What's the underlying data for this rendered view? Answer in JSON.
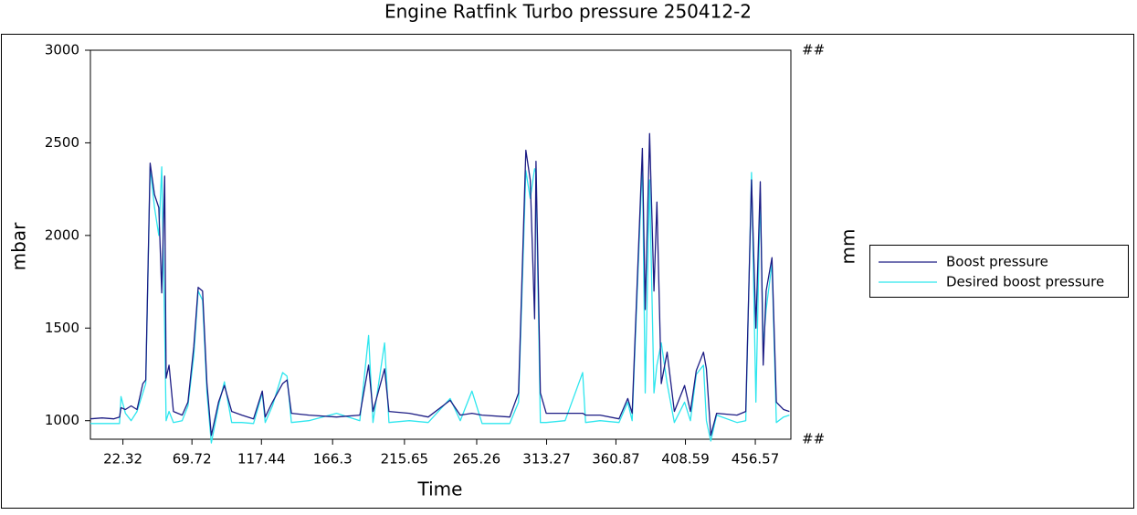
{
  "chart_data": {
    "type": "line",
    "title": "Engine Ratfink   Turbo pressure 250412-2",
    "xlabel": "Time",
    "ylabel": "mbar",
    "y2label": "mm",
    "y2_tick_labels": [
      "##",
      "##"
    ],
    "x": [
      0,
      8,
      16,
      20,
      21,
      24,
      28,
      32,
      36,
      38,
      41,
      44,
      47,
      49,
      51,
      52,
      54,
      57,
      63,
      67,
      71,
      74,
      77,
      80,
      83,
      88,
      92,
      97,
      104,
      112,
      118,
      120,
      125,
      132,
      135,
      138,
      150,
      169,
      185,
      191,
      194,
      202,
      205,
      219,
      232,
      247,
      254,
      262,
      269,
      288,
      294,
      299,
      302,
      305,
      306,
      309,
      313,
      326,
      338,
      340,
      350,
      363,
      369,
      372,
      379,
      381,
      384,
      387,
      389,
      392,
      396,
      401,
      408,
      412,
      416,
      421,
      423,
      426,
      430,
      444,
      450,
      454,
      457,
      460,
      462,
      464,
      468,
      471,
      476,
      480
    ],
    "series": [
      {
        "name": "Boost pressure",
        "color": "#1c1c84",
        "values": [
          1010,
          1015,
          1010,
          1020,
          1070,
          1060,
          1080,
          1060,
          1200,
          1220,
          2390,
          2220,
          2150,
          1690,
          2320,
          1230,
          1300,
          1050,
          1030,
          1100,
          1400,
          1720,
          1700,
          1200,
          920,
          1100,
          1190,
          1050,
          1030,
          1010,
          1160,
          1020,
          1100,
          1200,
          1220,
          1040,
          1030,
          1020,
          1030,
          1300,
          1050,
          1280,
          1050,
          1040,
          1020,
          1110,
          1030,
          1040,
          1030,
          1020,
          1150,
          2460,
          2300,
          1550,
          2400,
          1150,
          1040,
          1040,
          1040,
          1030,
          1030,
          1010,
          1120,
          1040,
          2470,
          1600,
          2550,
          1700,
          2180,
          1200,
          1370,
          1050,
          1190,
          1050,
          1270,
          1370,
          1280,
          920,
          1040,
          1030,
          1050,
          2300,
          1500,
          2290,
          1300,
          1700,
          1880,
          1100,
          1060,
          1050
        ]
      },
      {
        "name": "Desired boost pressure",
        "color": "#2ee6ee",
        "values": [
          985,
          985,
          985,
          985,
          1130,
          1040,
          1000,
          1050,
          1150,
          1200,
          2370,
          2150,
          2000,
          2370,
          1500,
          1000,
          1050,
          990,
          1000,
          1080,
          1350,
          1700,
          1650,
          1150,
          880,
          1080,
          1210,
          990,
          990,
          985,
          1150,
          990,
          1080,
          1260,
          1240,
          990,
          1000,
          1040,
          1000,
          1460,
          990,
          1420,
          990,
          1000,
          990,
          1120,
          1000,
          1160,
          985,
          985,
          1100,
          2350,
          2200,
          2360,
          2340,
          990,
          990,
          1000,
          1260,
          990,
          1000,
          990,
          1100,
          1000,
          2400,
          1150,
          2300,
          1150,
          1300,
          1420,
          1200,
          990,
          1100,
          1000,
          1250,
          1300,
          1000,
          890,
          1030,
          990,
          1000,
          2340,
          1100,
          2230,
          1400,
          1600,
          1850,
          990,
          1020,
          1030
        ]
      }
    ],
    "xlim": [
      0,
      481
    ],
    "xticks": [
      22.32,
      69.72,
      117.44,
      166.3,
      215.65,
      265.26,
      313.27,
      360.87,
      408.59,
      456.57
    ],
    "ylim": [
      900,
      3000
    ],
    "yticks": [
      1000,
      1500,
      2000,
      2500,
      3000
    ],
    "grid": false,
    "legend": "right"
  }
}
